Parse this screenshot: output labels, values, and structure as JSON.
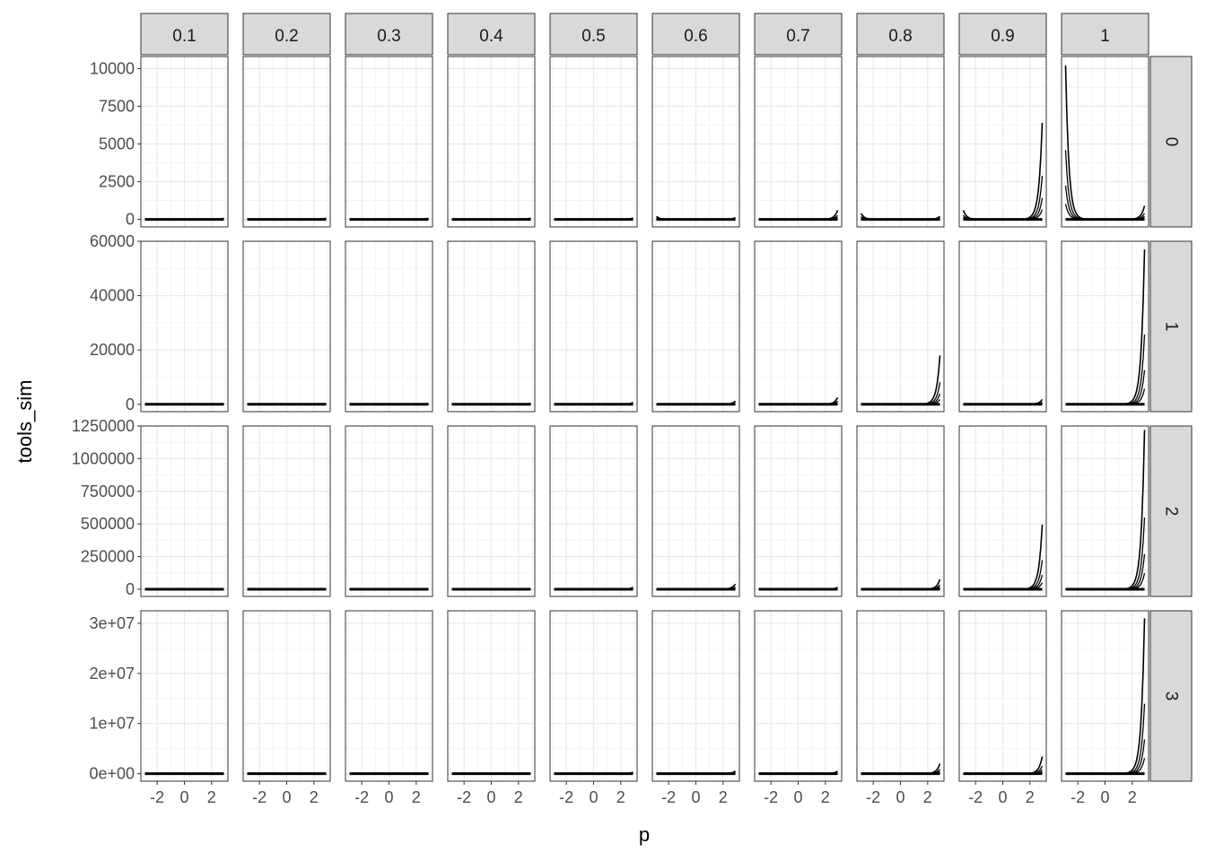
{
  "chart_data": {
    "type": "line",
    "facet_type": "grid",
    "xlabel": "p",
    "ylabel": "tools_sim",
    "xlim": [
      -3.2,
      3.2
    ],
    "x_ticks": [
      -2,
      0,
      2
    ],
    "x_tick_labels": [
      "-2",
      "0",
      "2"
    ],
    "col_facets": [
      "0.1",
      "0.2",
      "0.3",
      "0.4",
      "0.5",
      "0.6",
      "0.7",
      "0.8",
      "0.9",
      "1"
    ],
    "row_facets": [
      "0",
      "1",
      "2",
      "3"
    ],
    "rows": [
      {
        "ylim": [
          -500,
          10800
        ],
        "y_ticks": [
          0,
          2500,
          5000,
          7500,
          10000
        ],
        "y_tick_labels": [
          "0",
          "2500",
          "5000",
          "7500",
          "10000"
        ],
        "panel_peaks": [
          {
            "right": 80,
            "left": 0
          },
          {
            "right": 80,
            "left": 0
          },
          {
            "right": 80,
            "left": 0
          },
          {
            "right": 90,
            "left": 0
          },
          {
            "right": 100,
            "left": 0
          },
          {
            "right": 120,
            "left": 200
          },
          {
            "right": 600,
            "left": 0
          },
          {
            "right": 200,
            "left": 400
          },
          {
            "right": 6400,
            "left": 600
          },
          {
            "right": 900,
            "left": 10200
          }
        ]
      },
      {
        "ylim": [
          -2700,
          60000
        ],
        "y_ticks": [
          0,
          20000,
          40000,
          60000
        ],
        "y_tick_labels": [
          "0",
          "20000",
          "40000",
          "60000"
        ],
        "panel_peaks": [
          {
            "right": 300,
            "left": 0
          },
          {
            "right": 300,
            "left": 0
          },
          {
            "right": 300,
            "left": 0
          },
          {
            "right": 400,
            "left": 0
          },
          {
            "right": 700,
            "left": 0
          },
          {
            "right": 1200,
            "left": 0
          },
          {
            "right": 2500,
            "left": 0
          },
          {
            "right": 18000,
            "left": 0
          },
          {
            "right": 1800,
            "left": 0
          },
          {
            "right": 57000,
            "left": 0
          }
        ]
      },
      {
        "ylim": [
          -55000,
          1250000
        ],
        "y_ticks": [
          0,
          250000,
          500000,
          750000,
          1000000,
          1250000
        ],
        "y_tick_labels": [
          "0",
          "250000",
          "500000",
          "750000",
          "1000000",
          "1250000"
        ],
        "panel_peaks": [
          {
            "right": 1000,
            "left": 0
          },
          {
            "right": 1000,
            "left": 0
          },
          {
            "right": 1000,
            "left": 0
          },
          {
            "right": 2000,
            "left": 0
          },
          {
            "right": 15000,
            "left": 0
          },
          {
            "right": 40000,
            "left": 0
          },
          {
            "right": 15000,
            "left": 0
          },
          {
            "right": 75000,
            "left": 0
          },
          {
            "right": 495000,
            "left": 0
          },
          {
            "right": 1220000,
            "left": 0
          }
        ]
      },
      {
        "ylim": [
          -1500000,
          32500000
        ],
        "y_ticks": [
          0,
          10000000,
          20000000,
          30000000
        ],
        "y_tick_labels": [
          "0e+00",
          "1e+07",
          "2e+07",
          "3e+07"
        ],
        "panel_peaks": [
          {
            "right": 20000,
            "left": 0
          },
          {
            "right": 20000,
            "left": 0
          },
          {
            "right": 20000,
            "left": 0
          },
          {
            "right": 50000,
            "left": 0
          },
          {
            "right": 300000,
            "left": 0
          },
          {
            "right": 500000,
            "left": 0
          },
          {
            "right": 500000,
            "left": 0
          },
          {
            "right": 2000000,
            "left": 0
          },
          {
            "right": 3400000,
            "left": 0
          },
          {
            "right": 31000000,
            "left": 0
          }
        ]
      }
    ],
    "grid": true,
    "theme": "bw"
  }
}
